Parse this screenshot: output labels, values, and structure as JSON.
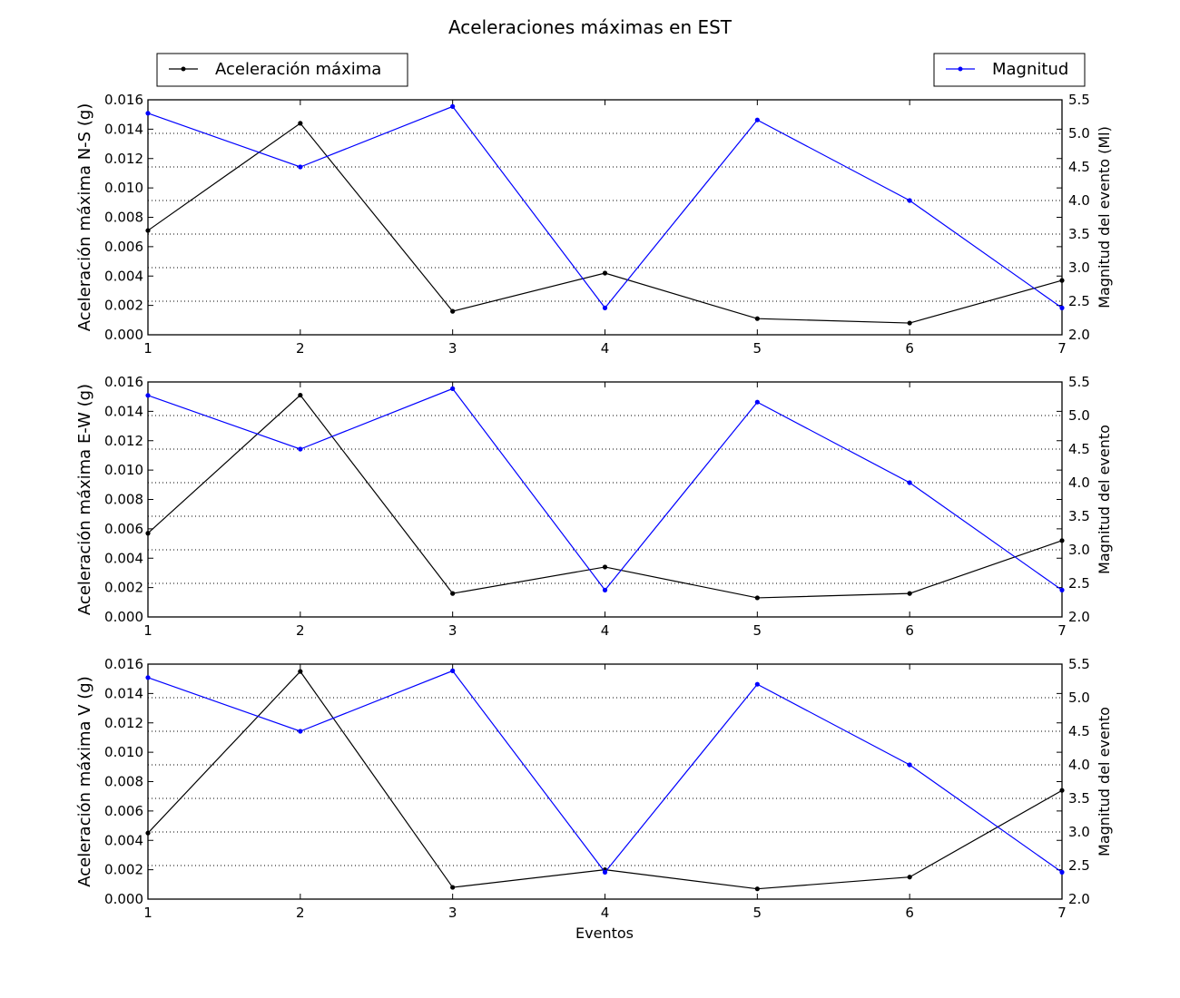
{
  "chart_data": {
    "type": "line",
    "title": "Aceleraciones máximas en EST",
    "legend": {
      "left_entry": "Aceleración máxima",
      "right_entry": "Magnitud",
      "left_color": "#000000",
      "right_color": "#0000ff",
      "placement": "top, above first subplot"
    },
    "x": [
      1,
      2,
      3,
      4,
      5,
      6,
      7
    ],
    "xlabel": "Eventos",
    "xlim": [
      1,
      7
    ],
    "y_ticks": [
      "0.000",
      "0.002",
      "0.004",
      "0.006",
      "0.008",
      "0.010",
      "0.012",
      "0.014",
      "0.016"
    ],
    "y2_ticks": [
      "2.0",
      "2.5",
      "3.0",
      "3.5",
      "4.0",
      "4.5",
      "5.0",
      "5.5"
    ],
    "grid": "horizontal dotted",
    "subplots": [
      {
        "ylabel": "Aceleración máxima N-S (g)",
        "y2label": "Magnitud del evento (Ml)",
        "ylim": [
          0,
          0.016
        ],
        "y2lim": [
          2.0,
          5.5
        ],
        "series": [
          {
            "name": "Aceleración máxima",
            "color": "#000000",
            "axis": "left",
            "values": [
              0.0071,
              0.0144,
              0.0016,
              0.0042,
              0.0011,
              0.0008,
              0.0037
            ]
          },
          {
            "name": "Magnitud",
            "color": "#0000ff",
            "axis": "right",
            "values": [
              5.3,
              4.5,
              5.4,
              2.4,
              5.2,
              4.0,
              2.4
            ]
          }
        ]
      },
      {
        "ylabel": "Aceleración máxima E-W (g)",
        "y2label": "Magnitud del evento",
        "ylim": [
          0,
          0.016
        ],
        "y2lim": [
          2.0,
          5.5
        ],
        "series": [
          {
            "name": "Aceleración máxima",
            "color": "#000000",
            "axis": "left",
            "values": [
              0.0057,
              0.0151,
              0.0016,
              0.0034,
              0.0013,
              0.0016,
              0.0052
            ]
          },
          {
            "name": "Magnitud",
            "color": "#0000ff",
            "axis": "right",
            "values": [
              5.3,
              4.5,
              5.4,
              2.4,
              5.2,
              4.0,
              2.4
            ]
          }
        ]
      },
      {
        "ylabel": "Aceleración máxima V (g)",
        "y2label": "Magnitud del evento",
        "ylim": [
          0,
          0.016
        ],
        "y2lim": [
          2.0,
          5.5
        ],
        "series": [
          {
            "name": "Aceleración máxima",
            "color": "#000000",
            "axis": "left",
            "values": [
              0.0045,
              0.0155,
              0.0008,
              0.002,
              0.0007,
              0.0015,
              0.0074
            ]
          },
          {
            "name": "Magnitud",
            "color": "#0000ff",
            "axis": "right",
            "values": [
              5.3,
              4.5,
              5.4,
              2.4,
              5.2,
              4.0,
              2.4
            ]
          }
        ]
      }
    ]
  }
}
